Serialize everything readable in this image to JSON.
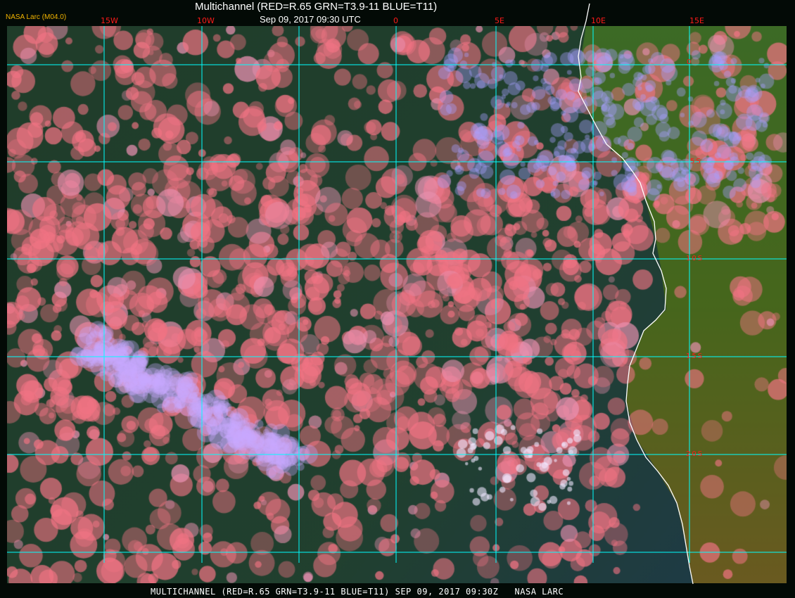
{
  "header": {
    "title": "Multichannel (RED=R.65 GRN=T3.9-11 BLUE=T11)",
    "datetime": "Sep 09, 2017 09:30 UTC",
    "org_label": "NASA Larc (M04.0)"
  },
  "grid": {
    "longitude_labels": [
      "15W",
      "10W",
      "0",
      "5E",
      "10E",
      "15E"
    ],
    "latitude_labels": [
      "0",
      "5S",
      "10S",
      "15S",
      "20S"
    ],
    "grid_color": "#00ffff",
    "label_color": "#ff1a1a",
    "coastline_color": "#ffffff"
  },
  "footer": {
    "caption": "MULTICHANNEL (RED=R.65 GRN=T3.9-11 BLUE=T11) SEP 09, 2017 09:30Z   NASA LARC"
  },
  "colors": {
    "ocean": "#1f3f2c",
    "low_cloud": "#f07080",
    "high_cloud": "#b8a0ff",
    "land": "#4a6a20"
  }
}
